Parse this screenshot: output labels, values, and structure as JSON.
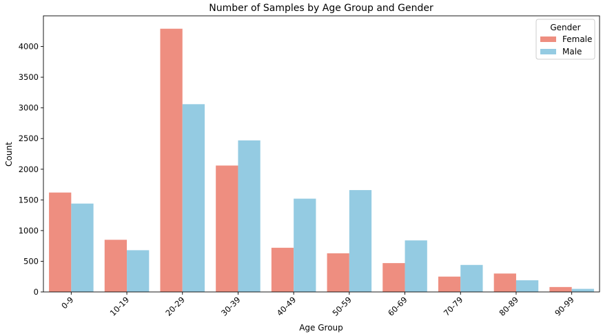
{
  "chart_data": {
    "type": "bar",
    "title": "Number of Samples by Age Group and Gender",
    "xlabel": "Age Group",
    "ylabel": "Count",
    "categories": [
      "0-9",
      "10-19",
      "20-29",
      "30-39",
      "40-49",
      "50-59",
      "60-69",
      "70-79",
      "80-89",
      "90-99"
    ],
    "series": [
      {
        "name": "Female",
        "color": "#ee8e80",
        "values": [
          1620,
          850,
          4290,
          2060,
          720,
          630,
          470,
          250,
          300,
          80
        ]
      },
      {
        "name": "Male",
        "color": "#94cbe2",
        "values": [
          1440,
          680,
          3060,
          2470,
          1520,
          1660,
          840,
          440,
          190,
          50
        ]
      }
    ],
    "ylim": [
      0,
      4500
    ],
    "yticks": [
      "0",
      "500",
      "1000",
      "1500",
      "2000",
      "2500",
      "3000",
      "3500",
      "4000"
    ],
    "legend": {
      "title": "Gender",
      "position": "top-right"
    },
    "grid": false
  }
}
